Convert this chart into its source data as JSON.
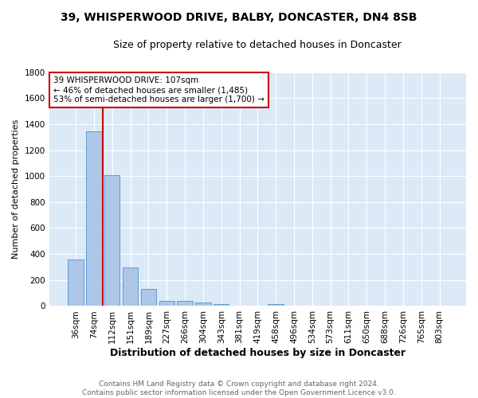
{
  "title": "39, WHISPERWOOD DRIVE, BALBY, DONCASTER, DN4 8SB",
  "subtitle": "Size of property relative to detached houses in Doncaster",
  "xlabel": "Distribution of detached houses by size in Doncaster",
  "ylabel": "Number of detached properties",
  "footer": "Contains HM Land Registry data © Crown copyright and database right 2024.\nContains public sector information licensed under the Open Government Licence v3.0.",
  "bar_labels": [
    "36sqm",
    "74sqm",
    "112sqm",
    "151sqm",
    "189sqm",
    "227sqm",
    "266sqm",
    "304sqm",
    "343sqm",
    "381sqm",
    "419sqm",
    "458sqm",
    "496sqm",
    "534sqm",
    "573sqm",
    "611sqm",
    "650sqm",
    "688sqm",
    "726sqm",
    "765sqm",
    "803sqm"
  ],
  "bar_values": [
    355,
    1345,
    1005,
    295,
    130,
    42,
    42,
    28,
    18,
    0,
    0,
    18,
    0,
    0,
    0,
    0,
    0,
    0,
    0,
    0,
    0
  ],
  "bar_color": "#aec6e8",
  "bar_edge_color": "#5a9fd4",
  "plot_background_color": "#dce9f7",
  "figure_background_color": "#ffffff",
  "grid_color": "#ffffff",
  "ylim": [
    0,
    1800
  ],
  "yticks": [
    0,
    200,
    400,
    600,
    800,
    1000,
    1200,
    1400,
    1600,
    1800
  ],
  "vline_color": "#cc0000",
  "annotation_text": "39 WHISPERWOOD DRIVE: 107sqm\n← 46% of detached houses are smaller (1,485)\n53% of semi-detached houses are larger (1,700) →",
  "annotation_box_color": "#ffffff",
  "annotation_box_edge_color": "#cc0000",
  "title_fontsize": 10,
  "subtitle_fontsize": 9,
  "xlabel_fontsize": 9,
  "ylabel_fontsize": 8,
  "tick_fontsize": 7.5,
  "footer_fontsize": 6.5,
  "footer_color": "#666666"
}
